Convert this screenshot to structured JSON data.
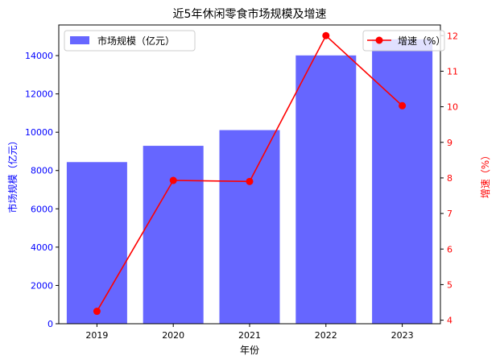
{
  "chart_data": {
    "type": "bar",
    "title": "近5年休闲零食市场规模及增速",
    "xlabel": "年份",
    "ylabel_left": "市场规模（亿元）",
    "ylabel_right": "增速（%）",
    "categories": [
      "2019",
      "2020",
      "2021",
      "2022",
      "2023"
    ],
    "series": [
      {
        "name": "市场规模（亿元）",
        "type": "bar",
        "axis": "left",
        "color": "#6666ff",
        "values": [
          8440,
          9290,
          10110,
          14010,
          14850
        ]
      },
      {
        "name": "增速（%）",
        "type": "line",
        "axis": "right",
        "color": "#ff0000",
        "values": [
          4.25,
          7.93,
          7.9,
          12.0,
          10.03
        ]
      }
    ],
    "ylim_left": [
      0,
      15600
    ],
    "yticks_left": [
      0,
      2000,
      4000,
      6000,
      8000,
      10000,
      12000,
      14000
    ],
    "ylim_right": [
      3.9,
      12.3
    ],
    "yticks_right": [
      4,
      5,
      6,
      7,
      8,
      9,
      10,
      11,
      12
    ],
    "legend": {
      "left_position": "top-left",
      "right_position": "top-right"
    },
    "grid": false,
    "colors": {
      "left_axis": "#0000ff",
      "right_axis": "#ff0000",
      "axes": "#000000"
    }
  }
}
